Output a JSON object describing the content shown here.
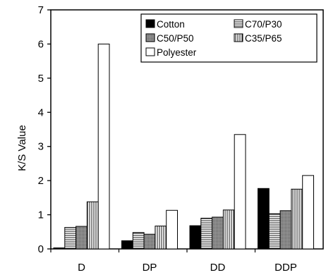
{
  "chart_data": {
    "type": "bar",
    "title": "",
    "xlabel": "",
    "ylabel": "K/S Value",
    "ylim": [
      0,
      7
    ],
    "yticks": [
      0,
      1,
      2,
      3,
      4,
      5,
      6,
      7
    ],
    "grid": false,
    "legend_position": "top-right",
    "categories": [
      "D",
      "DP",
      "DD",
      "DDP"
    ],
    "series": [
      {
        "name": "Cotton",
        "pattern": "solid",
        "values": [
          0.03,
          0.24,
          0.68,
          1.77
        ]
      },
      {
        "name": "C70/P30",
        "pattern": "horizontal-lines",
        "values": [
          0.63,
          0.48,
          0.9,
          1.03
        ]
      },
      {
        "name": "C50/P50",
        "pattern": "dots",
        "values": [
          0.66,
          0.43,
          0.93,
          1.12
        ]
      },
      {
        "name": "C35/P65",
        "pattern": "vertical-lines",
        "values": [
          1.38,
          0.67,
          1.14,
          1.75
        ]
      },
      {
        "name": "Polyester",
        "pattern": "empty",
        "values": [
          6.0,
          1.13,
          3.35,
          2.15
        ]
      }
    ]
  }
}
